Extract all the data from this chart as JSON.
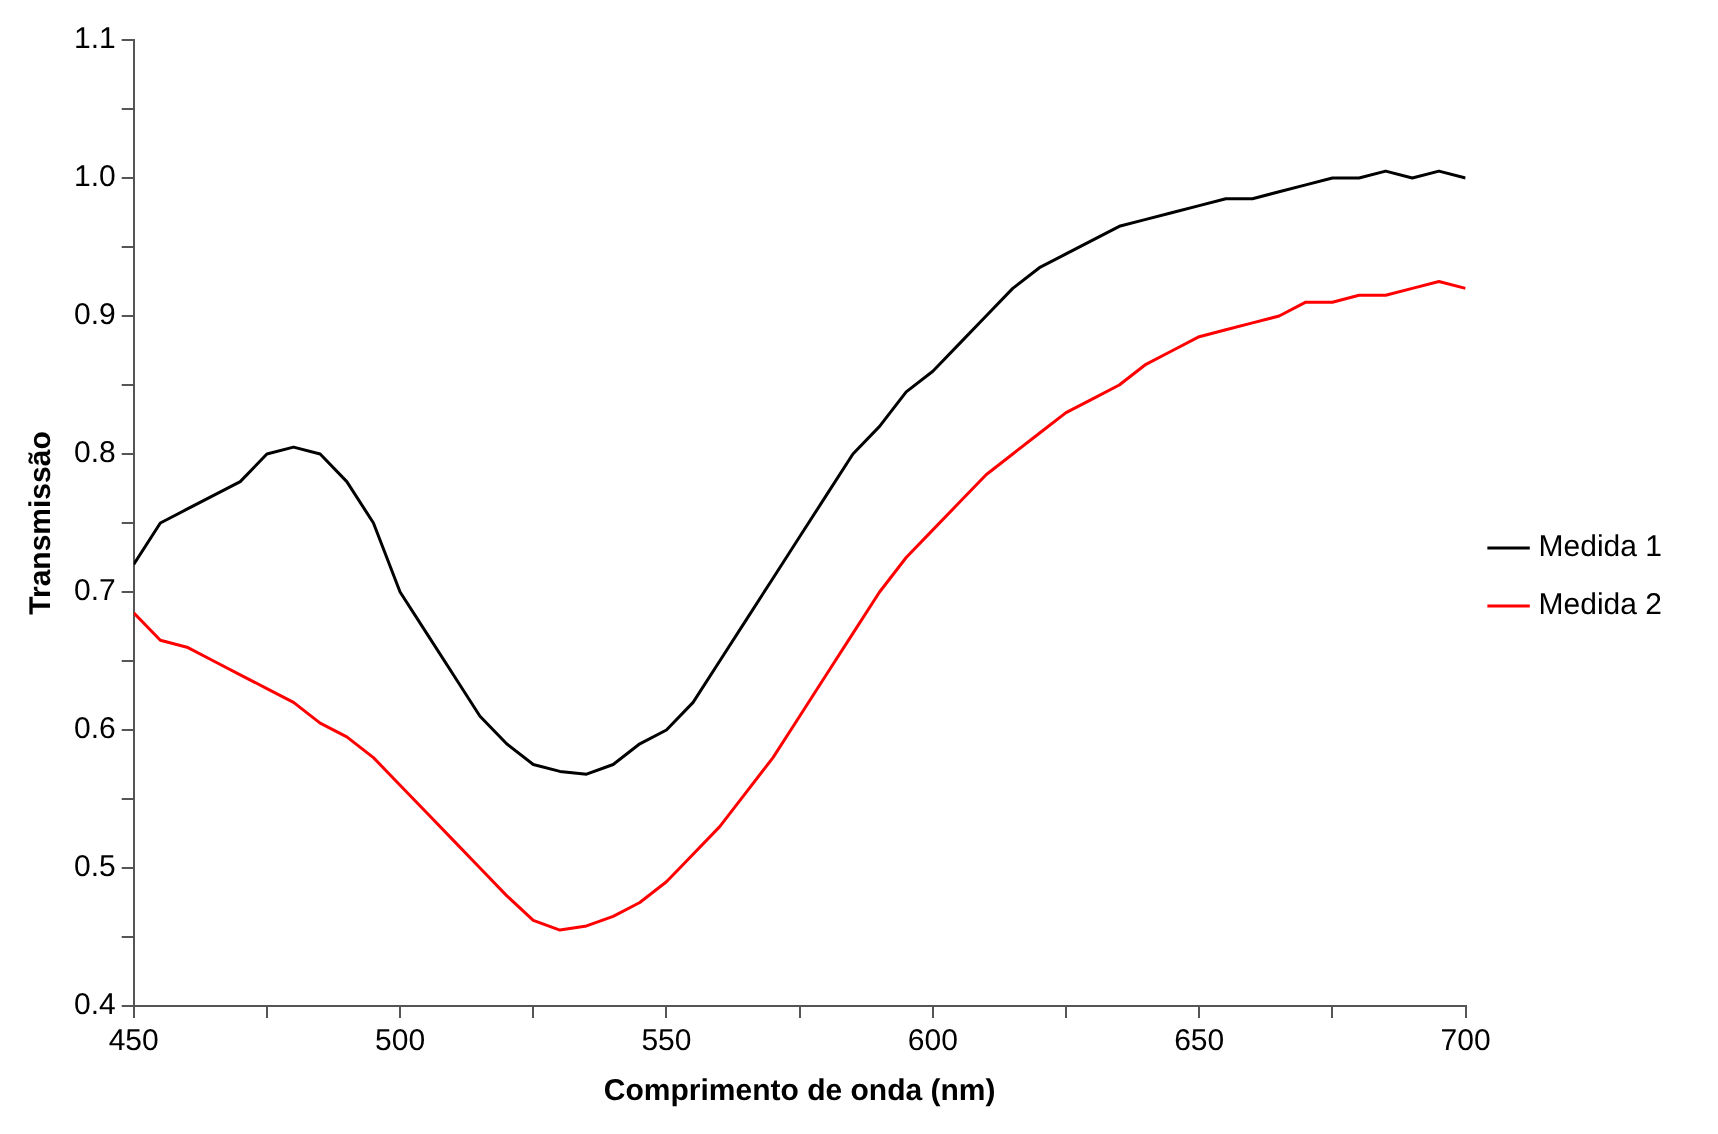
{
  "chart_data": {
    "type": "line",
    "xlabel": "Comprimento de onda (nm)",
    "ylabel": "Transmissão",
    "x": [
      450,
      455,
      460,
      465,
      470,
      475,
      480,
      485,
      490,
      495,
      500,
      505,
      510,
      515,
      520,
      525,
      530,
      535,
      540,
      545,
      550,
      555,
      560,
      565,
      570,
      575,
      580,
      585,
      590,
      595,
      600,
      605,
      610,
      615,
      620,
      625,
      630,
      635,
      640,
      645,
      650,
      655,
      660,
      665,
      670,
      675,
      680,
      685,
      690,
      695,
      700
    ],
    "series": [
      {
        "name": "Medida 1",
        "color": "#000000",
        "values": [
          0.72,
          0.75,
          0.76,
          0.77,
          0.78,
          0.8,
          0.805,
          0.8,
          0.78,
          0.75,
          0.7,
          0.67,
          0.64,
          0.61,
          0.59,
          0.575,
          0.57,
          0.568,
          0.575,
          0.59,
          0.6,
          0.62,
          0.65,
          0.68,
          0.71,
          0.74,
          0.77,
          0.8,
          0.82,
          0.845,
          0.86,
          0.88,
          0.9,
          0.92,
          0.935,
          0.945,
          0.955,
          0.965,
          0.97,
          0.975,
          0.98,
          0.985,
          0.985,
          0.99,
          0.995,
          1.0,
          1.0,
          1.005,
          1.0,
          1.005,
          1.0
        ]
      },
      {
        "name": "Medida 2",
        "color": "#ff0000",
        "values": [
          0.685,
          0.665,
          0.66,
          0.65,
          0.64,
          0.63,
          0.62,
          0.605,
          0.595,
          0.58,
          0.56,
          0.54,
          0.52,
          0.5,
          0.48,
          0.462,
          0.455,
          0.458,
          0.465,
          0.475,
          0.49,
          0.51,
          0.53,
          0.555,
          0.58,
          0.61,
          0.64,
          0.67,
          0.7,
          0.725,
          0.745,
          0.765,
          0.785,
          0.8,
          0.815,
          0.83,
          0.84,
          0.85,
          0.865,
          0.875,
          0.885,
          0.89,
          0.895,
          0.9,
          0.91,
          0.91,
          0.915,
          0.915,
          0.92,
          0.925,
          0.92
        ]
      }
    ],
    "xlim": [
      450,
      700
    ],
    "xticks": [
      450,
      {
        "value": 475,
        "label": null
      },
      500,
      {
        "value": 525,
        "label": null
      },
      550,
      {
        "value": 575,
        "label": null
      },
      600,
      {
        "value": 625,
        "label": null
      },
      650,
      {
        "value": 675,
        "label": null
      },
      700
    ],
    "ylim": [
      0.4,
      1.1
    ],
    "yticks": [
      0.4,
      {
        "value": 0.45,
        "label": null
      },
      0.5,
      {
        "value": 0.55,
        "label": null
      },
      0.6,
      {
        "value": 0.65,
        "label": null
      },
      0.7,
      {
        "value": 0.75,
        "label": null
      },
      0.8,
      {
        "value": 0.85,
        "label": null
      },
      0.9,
      {
        "value": 0.95,
        "label": null
      },
      {
        "value": 1.0,
        "label": "1.0"
      },
      {
        "value": 1.05,
        "label": null
      },
      1.1
    ],
    "grid": false,
    "legend": "right",
    "marker": "none",
    "line_style": "solid"
  }
}
